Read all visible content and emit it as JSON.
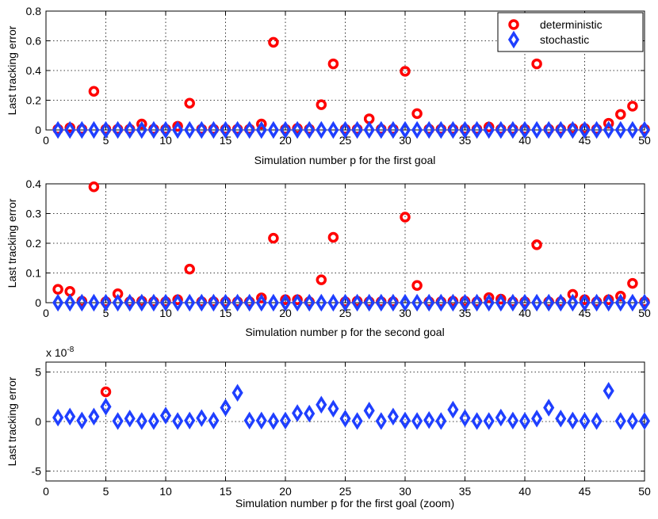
{
  "colors": {
    "deterministic": "#ff0000",
    "stochastic": "#1f3fff"
  },
  "chart_data": [
    {
      "type": "scatter",
      "xlabel": "Simulation number p for the first goal",
      "ylabel": "Last tracking error",
      "xlim": [
        0,
        50
      ],
      "ylim": [
        0,
        0.8
      ],
      "xticks": [
        "0",
        "5",
        "10",
        "15",
        "20",
        "25",
        "30",
        "35",
        "40",
        "45",
        "50"
      ],
      "yticks": [
        "0",
        "0.2",
        "0.4",
        "0.6",
        "0.8"
      ],
      "legend": {
        "placement": "top-right",
        "entries": [
          "deterministic",
          "stochastic"
        ]
      },
      "series": [
        {
          "name": "deterministic",
          "marker": "circle",
          "x": [
            1,
            2,
            3,
            4,
            5,
            6,
            7,
            8,
            9,
            10,
            11,
            12,
            13,
            14,
            15,
            16,
            17,
            18,
            19,
            20,
            21,
            22,
            23,
            24,
            25,
            26,
            27,
            28,
            29,
            30,
            31,
            32,
            33,
            34,
            35,
            36,
            37,
            38,
            39,
            40,
            41,
            42,
            43,
            44,
            45,
            46,
            47,
            48,
            49,
            50
          ],
          "y": [
            0.005,
            0.015,
            0.005,
            0.26,
            0.005,
            0.005,
            0.005,
            0.04,
            0.005,
            0.005,
            0.025,
            0.18,
            0.005,
            0.005,
            0.005,
            0.005,
            0.005,
            0.04,
            0.59,
            0.005,
            0.01,
            0.005,
            0.17,
            0.445,
            0.005,
            0.005,
            0.075,
            0.005,
            0.005,
            0.395,
            0.11,
            0.005,
            0.005,
            0.005,
            0.005,
            0.005,
            0.02,
            0.005,
            0.005,
            0.005,
            0.445,
            0.005,
            0.005,
            0.01,
            0.01,
            0.005,
            0.045,
            0.105,
            0.16,
            0.005
          ]
        },
        {
          "name": "stochastic",
          "marker": "diamond",
          "x": [
            1,
            2,
            3,
            4,
            5,
            6,
            7,
            8,
            9,
            10,
            11,
            12,
            13,
            14,
            15,
            16,
            17,
            18,
            19,
            20,
            21,
            22,
            23,
            24,
            25,
            26,
            27,
            28,
            29,
            30,
            31,
            32,
            33,
            34,
            35,
            36,
            37,
            38,
            39,
            40,
            41,
            42,
            43,
            44,
            45,
            46,
            47,
            48,
            49,
            50
          ],
          "y": [
            0,
            0,
            0,
            0,
            0,
            0,
            0,
            0,
            0,
            0,
            0,
            0,
            0,
            0,
            0,
            0,
            0,
            0,
            0,
            0,
            0,
            0,
            0,
            0,
            0,
            0,
            0,
            0,
            0,
            0,
            0,
            0,
            0,
            0,
            0,
            0,
            0,
            0,
            0,
            0,
            0,
            0,
            0,
            0,
            0,
            0,
            0,
            0,
            0,
            0
          ]
        }
      ]
    },
    {
      "type": "scatter",
      "xlabel": "Simulation number p for the second goal",
      "ylabel": "Last tracking error",
      "xlim": [
        0,
        50
      ],
      "ylim": [
        0,
        0.4
      ],
      "xticks": [
        "0",
        "5",
        "10",
        "15",
        "20",
        "25",
        "30",
        "35",
        "40",
        "45",
        "50"
      ],
      "yticks": [
        "0",
        "0.1",
        "0.2",
        "0.3",
        "0.4"
      ],
      "series": [
        {
          "name": "deterministic",
          "marker": "circle",
          "x": [
            1,
            2,
            3,
            4,
            5,
            6,
            7,
            8,
            9,
            10,
            11,
            12,
            13,
            14,
            15,
            16,
            17,
            18,
            19,
            20,
            21,
            22,
            23,
            24,
            25,
            26,
            27,
            28,
            29,
            30,
            31,
            32,
            33,
            34,
            35,
            36,
            37,
            38,
            39,
            40,
            41,
            42,
            43,
            44,
            45,
            46,
            47,
            48,
            49,
            50
          ],
          "y": [
            0.045,
            0.038,
            0.005,
            0.39,
            0.003,
            0.03,
            0.003,
            0.005,
            0.003,
            0.003,
            0.01,
            0.113,
            0.003,
            0.003,
            0.003,
            0.003,
            0.003,
            0.016,
            0.217,
            0.01,
            0.01,
            0.003,
            0.077,
            0.22,
            0.003,
            0.005,
            0.003,
            0.003,
            0.003,
            0.288,
            0.058,
            0.003,
            0.003,
            0.005,
            0.005,
            0.003,
            0.017,
            0.012,
            0.003,
            0.003,
            0.195,
            0.003,
            0.003,
            0.028,
            0.01,
            0.003,
            0.01,
            0.022,
            0.065,
            0.003
          ]
        },
        {
          "name": "stochastic",
          "marker": "diamond",
          "x": [
            1,
            2,
            3,
            4,
            5,
            6,
            7,
            8,
            9,
            10,
            11,
            12,
            13,
            14,
            15,
            16,
            17,
            18,
            19,
            20,
            21,
            22,
            23,
            24,
            25,
            26,
            27,
            28,
            29,
            30,
            31,
            32,
            33,
            34,
            35,
            36,
            37,
            38,
            39,
            40,
            41,
            42,
            43,
            44,
            45,
            46,
            47,
            48,
            49,
            50
          ],
          "y": [
            0,
            0,
            0,
            0,
            0,
            0,
            0,
            0,
            0,
            0,
            0,
            0,
            0,
            0,
            0,
            0,
            0,
            0,
            0,
            0,
            0,
            0,
            0,
            0,
            0,
            0,
            0,
            0,
            0,
            0,
            0,
            0,
            0,
            0,
            0,
            0,
            0,
            0,
            0,
            0,
            0,
            0,
            0,
            0,
            0,
            0,
            0,
            0,
            0,
            0
          ]
        }
      ]
    },
    {
      "type": "scatter",
      "xlabel": "Simulation number p for the first goal (zoom)",
      "ylabel": "Last tracking error",
      "scale_base": "x 10",
      "scale_exp": "-8",
      "xlim": [
        0,
        50
      ],
      "ylim": [
        -6,
        6
      ],
      "xticks": [
        "0",
        "5",
        "10",
        "15",
        "20",
        "25",
        "30",
        "35",
        "40",
        "45",
        "50"
      ],
      "yticks": [
        "-5",
        "0",
        "5"
      ],
      "series": [
        {
          "name": "deterministic",
          "marker": "circle",
          "x": [
            5
          ],
          "y": [
            3.0
          ]
        },
        {
          "name": "stochastic",
          "marker": "diamond",
          "x": [
            1,
            2,
            3,
            4,
            5,
            6,
            7,
            8,
            9,
            10,
            11,
            12,
            13,
            14,
            15,
            16,
            17,
            18,
            19,
            20,
            21,
            22,
            23,
            24,
            25,
            26,
            27,
            28,
            29,
            30,
            31,
            32,
            33,
            34,
            35,
            36,
            37,
            38,
            39,
            40,
            41,
            42,
            43,
            44,
            45,
            46,
            47,
            48,
            49,
            50
          ],
          "y": [
            0.4,
            0.5,
            0.1,
            0.5,
            1.5,
            0.05,
            0.3,
            0.05,
            0.05,
            0.6,
            0.05,
            0.1,
            0.35,
            0.1,
            1.4,
            2.9,
            0.1,
            0.1,
            0.05,
            0.1,
            0.85,
            0.8,
            1.7,
            1.3,
            0.3,
            0.05,
            1.1,
            0.05,
            0.5,
            0.1,
            0.05,
            0.15,
            0.05,
            1.2,
            0.35,
            0.05,
            0.05,
            0.4,
            0.1,
            0.05,
            0.3,
            1.4,
            0.3,
            0.1,
            0.05,
            0.05,
            3.1,
            0.05,
            0.05,
            0.05
          ]
        }
      ]
    }
  ]
}
